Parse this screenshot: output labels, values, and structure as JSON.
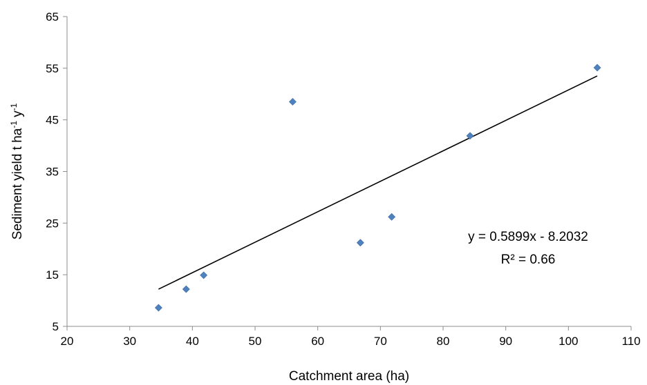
{
  "chart_data": {
    "type": "scatter",
    "title": "",
    "xlabel": "Catchment area (ha)",
    "ylabel": {
      "parts": [
        {
          "text": "Sediment yield t ha",
          "sup": false
        },
        {
          "text": "-1",
          "sup": true
        },
        {
          "text": " y",
          "sup": false
        },
        {
          "text": "-1",
          "sup": true
        }
      ]
    },
    "xlim": [
      20,
      110
    ],
    "ylim": [
      5,
      65
    ],
    "x_ticks": [
      "20",
      "30",
      "40",
      "50",
      "60",
      "70",
      "80",
      "90",
      "100",
      "110"
    ],
    "y_ticks": [
      "5",
      "15",
      "25",
      "35",
      "45",
      "55",
      "65"
    ],
    "grid": false,
    "legend": "none",
    "marker_color": "#4f81bd",
    "series": [
      {
        "points": [
          {
            "x": 34.6,
            "y": 8.6
          },
          {
            "x": 39.0,
            "y": 12.2
          },
          {
            "x": 41.8,
            "y": 14.9
          },
          {
            "x": 56.0,
            "y": 48.5
          },
          {
            "x": 66.8,
            "y": 21.2
          },
          {
            "x": 71.8,
            "y": 26.2
          },
          {
            "x": 84.3,
            "y": 41.9
          },
          {
            "x": 104.6,
            "y": 55.1
          }
        ]
      }
    ],
    "trendline": {
      "type": "linear",
      "slope": 0.5899,
      "intercept": -8.2032,
      "x_range": [
        34.6,
        104.6
      ],
      "color": "#000000"
    },
    "annotations": {
      "equation": "y = 0.5899x - 8.2032",
      "r_squared": "R² = 0.66"
    }
  }
}
